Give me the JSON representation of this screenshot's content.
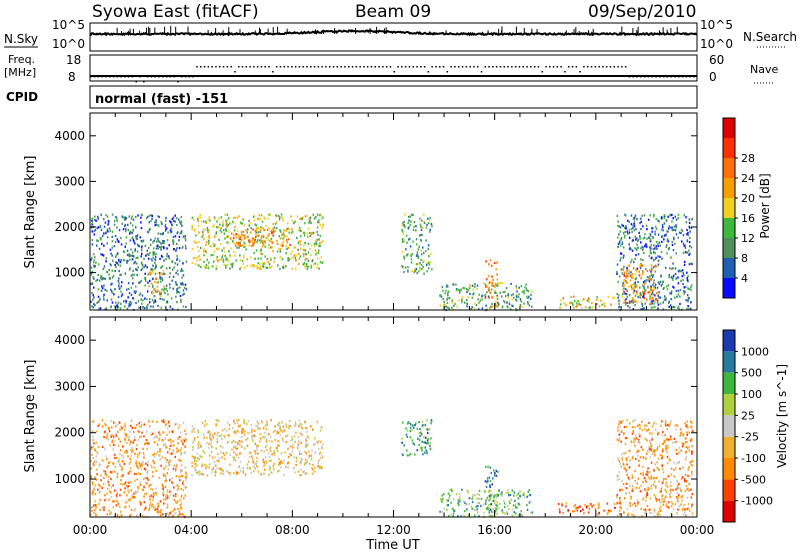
{
  "header": {
    "station": "Syowa East (fitACF)",
    "beam": "Beam 09",
    "date": "09/Sep/2010"
  },
  "status_panels": {
    "nsky_label": "N.Sky",
    "nsky_ticks": [
      "10^5",
      "10^0"
    ],
    "nsearch_label": "N.Search",
    "nsearch_ticks": [
      "10^5",
      "10^0"
    ],
    "freq_label_1": "Freq.",
    "freq_label_2": "[MHz]",
    "freq_ticks": [
      "18",
      "8"
    ],
    "nave_label": "Nave",
    "nave_ticks": [
      "60",
      "0"
    ],
    "cpid_label": "CPID",
    "cpid_value": "normal (fast) -151"
  },
  "colors": {
    "power_scale": [
      "#0a0aff",
      "#1e5fb4",
      "#4e8f5a",
      "#3cb83c",
      "#f0d020",
      "#f5a000",
      "#ff7000",
      "#ff3000",
      "#e00000"
    ],
    "velocity_scale": [
      "#e00000",
      "#ff4000",
      "#ff8c00",
      "#f0b030",
      "#c8c8c8",
      "#b0d040",
      "#3cb83c",
      "#2a7aa0",
      "#1a3ab0"
    ]
  },
  "chart_data": [
    {
      "type": "heatmap",
      "name": "power",
      "ylabel": "Slant Range [km]",
      "yticks": [
        "1000",
        "2000",
        "3000",
        "4000"
      ],
      "ylim": [
        180,
        4500
      ],
      "xlim": [
        0,
        24
      ],
      "colorbar_label": "Power [dB]",
      "colorbar_ticks": [
        "4",
        "8",
        "12",
        "16",
        "20",
        "24",
        "28"
      ],
      "colorbar_range": [
        0,
        32
      ],
      "echo_regions": [
        {
          "t": [
            0.0,
            3.8
          ],
          "range": [
            200,
            2300
          ],
          "level": 8
        },
        {
          "t": [
            2.3,
            2.9
          ],
          "range": [
            500,
            1100
          ],
          "level": 20
        },
        {
          "t": [
            4.0,
            9.2
          ],
          "range": [
            1100,
            2300
          ],
          "level": 16
        },
        {
          "t": [
            5.5,
            8.0
          ],
          "range": [
            1600,
            2000
          ],
          "level": 24
        },
        {
          "t": [
            12.3,
            13.5
          ],
          "range": [
            1000,
            2300
          ],
          "level": 12
        },
        {
          "t": [
            13.8,
            17.5
          ],
          "range": [
            200,
            800
          ],
          "level": 14
        },
        {
          "t": [
            15.6,
            16.1
          ],
          "range": [
            200,
            1300
          ],
          "level": 22
        },
        {
          "t": [
            18.5,
            20.8
          ],
          "range": [
            250,
            500
          ],
          "level": 18
        },
        {
          "t": [
            20.8,
            23.8
          ],
          "range": [
            200,
            2300
          ],
          "level": 10
        },
        {
          "t": [
            21.0,
            22.4
          ],
          "range": [
            300,
            1200
          ],
          "level": 22
        }
      ]
    },
    {
      "type": "heatmap",
      "name": "velocity",
      "xlabel": "Time UT",
      "xticks": [
        "00:00",
        "04:00",
        "08:00",
        "12:00",
        "16:00",
        "20:00",
        "00:00"
      ],
      "ylabel": "Slant Range [km]",
      "yticks": [
        "1000",
        "2000",
        "3000",
        "4000"
      ],
      "ylim": [
        180,
        4500
      ],
      "xlim": [
        0,
        24
      ],
      "colorbar_label": "Velocity [m s^-1]",
      "colorbar_ticks": [
        "1000",
        "500",
        "100",
        "25",
        "-25",
        "-100",
        "-500",
        "-1000"
      ],
      "echo_regions": [
        {
          "t": [
            0.0,
            3.8
          ],
          "range": [
            200,
            2300
          ],
          "vel": -60
        },
        {
          "t": [
            4.0,
            9.2
          ],
          "range": [
            1100,
            2300
          ],
          "vel": 0
        },
        {
          "t": [
            12.3,
            13.5
          ],
          "range": [
            1500,
            2300
          ],
          "vel": 800
        },
        {
          "t": [
            13.8,
            17.5
          ],
          "range": [
            200,
            800
          ],
          "vel": 150
        },
        {
          "t": [
            15.6,
            16.1
          ],
          "range": [
            200,
            1300
          ],
          "vel": 600
        },
        {
          "t": [
            18.5,
            20.8
          ],
          "range": [
            250,
            500
          ],
          "vel": -120
        },
        {
          "t": [
            20.8,
            23.8
          ],
          "range": [
            200,
            2300
          ],
          "vel": -40
        }
      ]
    }
  ]
}
